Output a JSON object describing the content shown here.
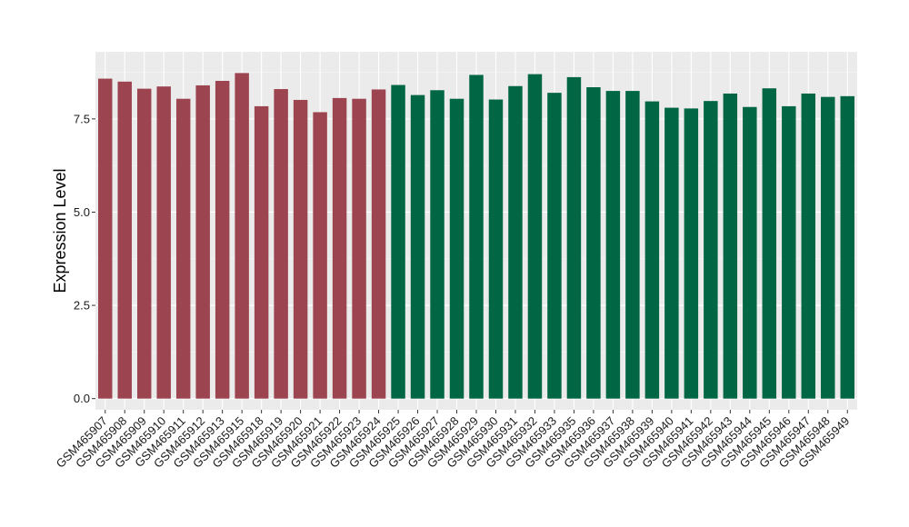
{
  "chart_data": {
    "type": "bar",
    "title": "",
    "xlabel": "",
    "ylabel": "Expression Level",
    "ylim": [
      -0.3,
      9.3
    ],
    "yticks": [
      0.0,
      2.5,
      5.0,
      7.5
    ],
    "ytick_labels": [
      "0.0",
      "2.5",
      "5.0",
      "7.5"
    ],
    "grid": true,
    "legend": "none",
    "panel_color": "#ebebeb",
    "categories": [
      "GSM465907",
      "GSM465908",
      "GSM465909",
      "GSM465910",
      "GSM465911",
      "GSM465912",
      "GSM465913",
      "GSM465915",
      "GSM465918",
      "GSM465919",
      "GSM465920",
      "GSM465921",
      "GSM465922",
      "GSM465923",
      "GSM465924",
      "GSM465925",
      "GSM465926",
      "GSM465927",
      "GSM465928",
      "GSM465929",
      "GSM465930",
      "GSM465931",
      "GSM465932",
      "GSM465933",
      "GSM465935",
      "GSM465936",
      "GSM465937",
      "GSM465938",
      "GSM465939",
      "GSM465940",
      "GSM465941",
      "GSM465942",
      "GSM465943",
      "GSM465944",
      "GSM465945",
      "GSM465946",
      "GSM465947",
      "GSM465948",
      "GSM465949"
    ],
    "values": [
      8.58,
      8.5,
      8.31,
      8.37,
      8.04,
      8.4,
      8.52,
      8.73,
      7.84,
      8.3,
      8.01,
      7.68,
      8.06,
      8.04,
      8.29,
      8.41,
      8.14,
      8.27,
      8.04,
      8.68,
      8.02,
      8.38,
      8.7,
      8.2,
      8.62,
      8.35,
      8.25,
      8.25,
      7.97,
      7.8,
      7.78,
      7.98,
      8.18,
      7.82,
      8.32,
      7.84,
      8.18,
      8.09,
      8.11
    ],
    "colors": [
      "#9c4450",
      "#9c4450",
      "#9c4450",
      "#9c4450",
      "#9c4450",
      "#9c4450",
      "#9c4450",
      "#9c4450",
      "#9c4450",
      "#9c4450",
      "#9c4450",
      "#9c4450",
      "#9c4450",
      "#9c4450",
      "#9c4450",
      "#006644",
      "#006644",
      "#006644",
      "#006644",
      "#006644",
      "#006644",
      "#006644",
      "#006644",
      "#006644",
      "#006644",
      "#006644",
      "#006644",
      "#006644",
      "#006644",
      "#006644",
      "#006644",
      "#006644",
      "#006644",
      "#006644",
      "#006644",
      "#006644",
      "#006644",
      "#006644",
      "#006644"
    ]
  }
}
